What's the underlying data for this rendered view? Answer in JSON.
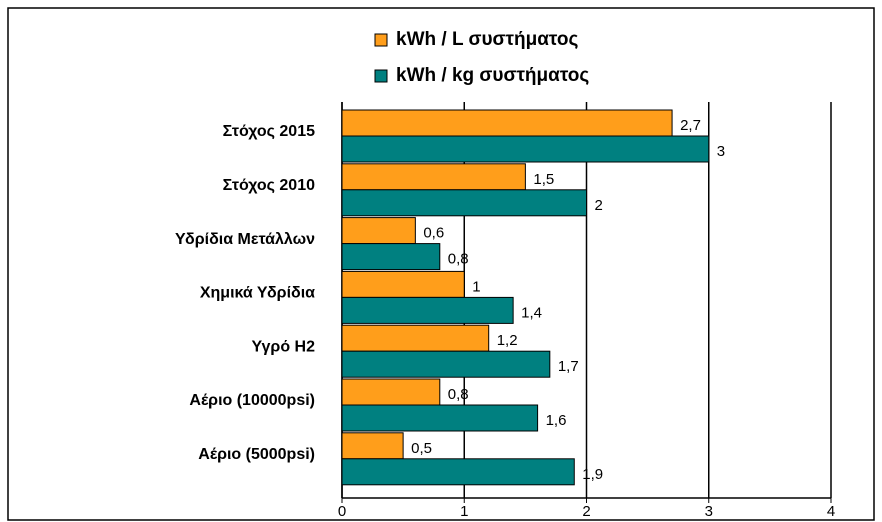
{
  "chart_data": {
    "type": "barh",
    "categories": [
      "Στόχος 2015",
      "Στόχος 2010",
      "Υδρίδια Μετάλλων",
      "Χημικά Υδρίδια",
      "Υγρό H2",
      "Αέριο (10000psi)",
      "Αέριο (5000psi)"
    ],
    "series": [
      {
        "name": "kWh / L συστήματος",
        "color": "#ff9e1b",
        "values": [
          2.7,
          1.5,
          0.6,
          1,
          1.2,
          0.8,
          0.5
        ],
        "value_labels": [
          "2,7",
          "1,5",
          "0,6",
          "1",
          "1,2",
          "0,8",
          "0,5"
        ]
      },
      {
        "name": "kWh / kg συστήματος",
        "color": "#008080",
        "values": [
          3,
          2,
          0.8,
          1.4,
          1.7,
          1.6,
          1.9
        ],
        "value_labels": [
          "3",
          "2",
          "0,8",
          "1,4",
          "1,7",
          "1,6",
          "1,9"
        ]
      }
    ],
    "xlim": [
      0,
      4
    ],
    "xticks": [
      0,
      1,
      2,
      3,
      4
    ],
    "grid": true
  }
}
